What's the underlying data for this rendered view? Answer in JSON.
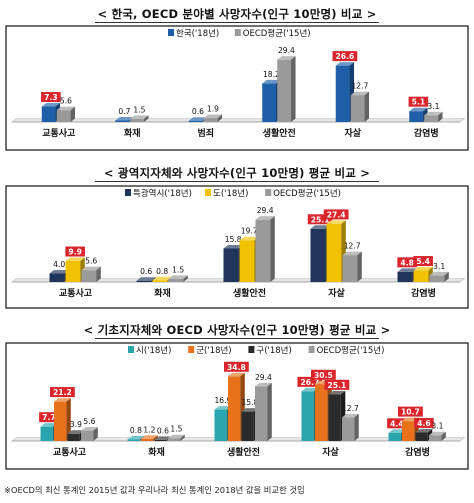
{
  "colors": {
    "korea": "#1f5fa8",
    "oecd": "#9a9a9a",
    "metro": "#1f3559",
    "province": "#f2c200",
    "si": "#2aa5ad",
    "gun": "#e8711c",
    "gu": "#2b2b2b",
    "highlight_label_bg": "#d9252b"
  },
  "footnote": "※OECD의 최신 통계인 2015년 값과 우리나라 최신 통계인 2018년 값을 비교한 것임",
  "charts": [
    {
      "title": "< 한국, OECD 분야별 사망자수(인구 10만명) 비교 >",
      "chart_data": {
        "type": "bar",
        "categories": [
          "교통사고",
          "화재",
          "범죄",
          "생활안전",
          "자살",
          "감염병"
        ],
        "legend": "top-right",
        "series": [
          {
            "name": "한국('18년)",
            "color": "#1f5fa8",
            "values": [
              7.3,
              0.7,
              0.6,
              18.2,
              26.6,
              5.1
            ],
            "highlight": [
              true,
              false,
              false,
              false,
              true,
              true
            ]
          },
          {
            "name": "OECD평균('15년)",
            "color": "#9a9a9a",
            "values": [
              5.6,
              1.5,
              1.9,
              29.4,
              12.7,
              3.1
            ],
            "highlight": [
              false,
              false,
              false,
              false,
              false,
              false
            ]
          }
        ]
      }
    },
    {
      "title": "< 광역지자체와 사망자수(인구 10만명) 평균 비교 >",
      "chart_data": {
        "type": "bar",
        "categories": [
          "교통사고",
          "화재",
          "생활안전",
          "자살",
          "감염병"
        ],
        "legend": "top-right",
        "series": [
          {
            "name": "특광역시('18년)",
            "color": "#1f3559",
            "values": [
              4.0,
              0.6,
              15.8,
              25.1,
              4.8
            ],
            "highlight": [
              false,
              false,
              false,
              true,
              true
            ]
          },
          {
            "name": "도('18년)",
            "color": "#f2c200",
            "values": [
              9.9,
              0.8,
              19.7,
              27.4,
              5.4
            ],
            "highlight": [
              true,
              false,
              false,
              true,
              true
            ]
          },
          {
            "name": "OECD평균('15년)",
            "color": "#9a9a9a",
            "values": [
              5.6,
              1.5,
              29.4,
              12.7,
              3.1
            ],
            "highlight": [
              false,
              false,
              false,
              false,
              false
            ]
          }
        ]
      }
    },
    {
      "title": "< 기초지자체와 OECD 사망자수(인구 10만명) 평균 비교 >",
      "chart_data": {
        "type": "bar",
        "categories": [
          "교통사고",
          "화재",
          "생활안전",
          "자살",
          "감염병"
        ],
        "legend": "top-right",
        "series": [
          {
            "name": "시('18년)",
            "color": "#2aa5ad",
            "values": [
              7.7,
              0.8,
              16.9,
              26.7,
              4.4
            ],
            "highlight": [
              true,
              false,
              false,
              true,
              true
            ]
          },
          {
            "name": "군('18년)",
            "color": "#e8711c",
            "values": [
              21.2,
              1.2,
              34.8,
              30.5,
              10.7
            ],
            "highlight": [
              true,
              false,
              true,
              true,
              true
            ]
          },
          {
            "name": "구('18년)",
            "color": "#2b2b2b",
            "values": [
              3.9,
              0.6,
              15.8,
              25.1,
              4.6
            ],
            "highlight": [
              false,
              false,
              false,
              true,
              true
            ]
          },
          {
            "name": "OECD평균('15년)",
            "color": "#9a9a9a",
            "values": [
              5.6,
              1.5,
              29.4,
              12.7,
              3.1
            ],
            "highlight": [
              false,
              false,
              false,
              false,
              false
            ]
          }
        ]
      }
    }
  ]
}
